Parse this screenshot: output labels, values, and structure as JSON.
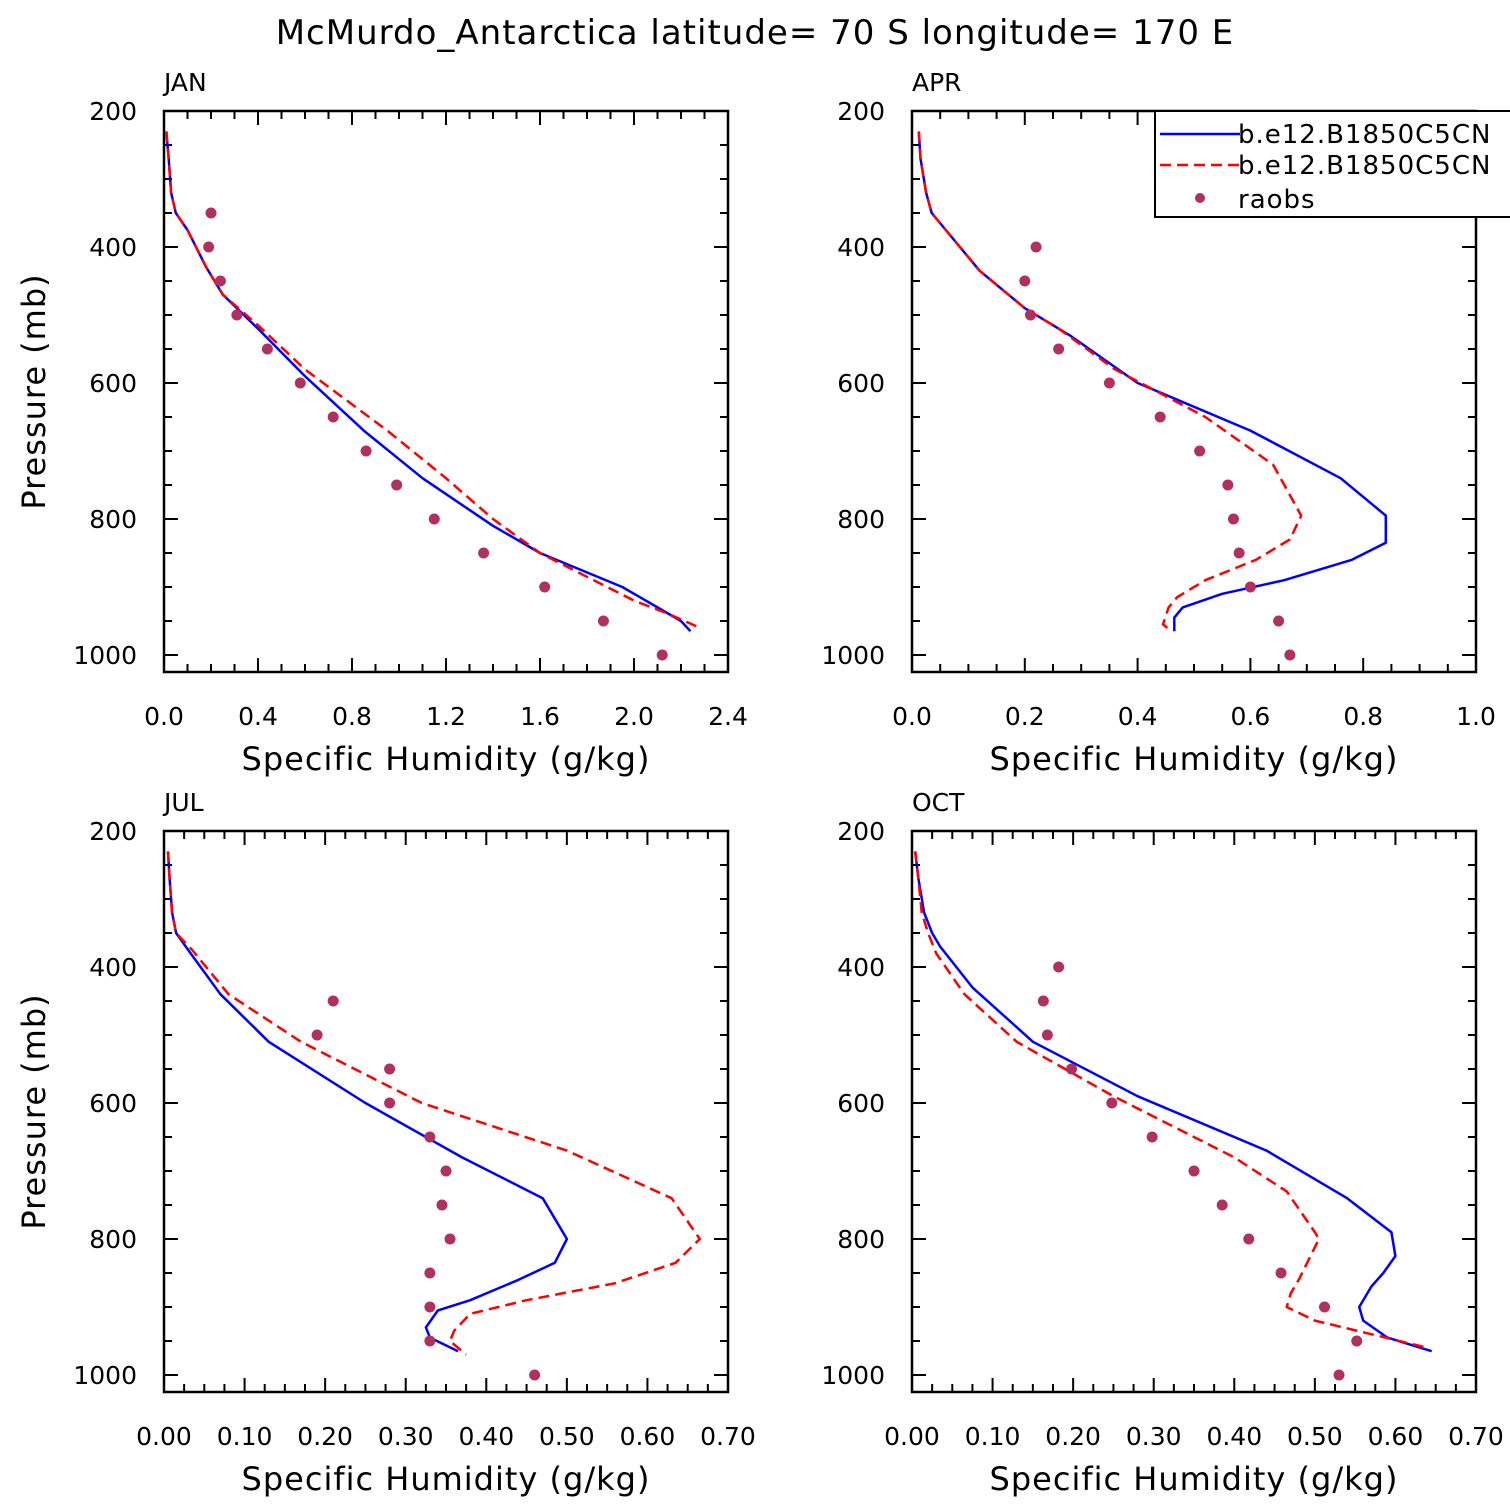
{
  "figure_title": "McMurdo_Antarctica  latitude= 70 S longitude= 170 E",
  "legend": {
    "entries": [
      {
        "label": "b.e12.B1850C5CN",
        "style": "solid",
        "color": "#0000ff"
      },
      {
        "label": "b.e12.B1850C5CN",
        "style": "dashed",
        "color": "#ff0000"
      },
      {
        "label": "raobs",
        "style": "dot",
        "color": "#b03060"
      }
    ],
    "placement": "top-right of APR panel"
  },
  "chart_data": [
    {
      "type": "line",
      "panel": "JAN",
      "xlabel": "Specific Humidity (g/kg)",
      "ylabel": "Pressure (mb)",
      "xlim": [
        0,
        2.4
      ],
      "ylim": [
        1025,
        200
      ],
      "xticks": [
        0,
        0.4,
        0.8,
        1.2,
        1.6,
        2.0,
        2.4
      ],
      "xtick_labels": [
        "0.0",
        "0.4",
        "0.8",
        "1.2",
        "1.6",
        "2.0",
        "2.4"
      ],
      "yticks": [
        200,
        400,
        600,
        800,
        1000
      ],
      "ytick_labels": [
        "200",
        "400",
        "600",
        "800",
        "1000"
      ],
      "series": [
        {
          "name": "b.e12.B1850C5CN",
          "style": "solid",
          "color": "#0000ff",
          "x": [
            0.01,
            0.02,
            0.03,
            0.05,
            0.1,
            0.18,
            0.25,
            0.4,
            0.6,
            0.85,
            1.1,
            1.4,
            1.6,
            1.95,
            2.2,
            2.24
          ],
          "y": [
            230,
            270,
            320,
            350,
            375,
            430,
            470,
            520,
            590,
            670,
            740,
            810,
            850,
            900,
            950,
            965
          ]
        },
        {
          "name": "b.e12.B1850C5CN",
          "style": "dashed",
          "color": "#ff0000",
          "x": [
            0.01,
            0.02,
            0.03,
            0.05,
            0.1,
            0.18,
            0.25,
            0.4,
            0.6,
            0.95,
            1.2,
            1.4,
            1.6,
            2.0,
            2.15,
            2.28
          ],
          "y": [
            230,
            270,
            320,
            350,
            375,
            430,
            470,
            515,
            580,
            670,
            740,
            800,
            850,
            920,
            940,
            960
          ]
        },
        {
          "name": "raobs",
          "style": "dot",
          "color": "#b03060",
          "x": [
            0.2,
            0.19,
            0.24,
            0.31,
            0.44,
            0.58,
            0.72,
            0.86,
            0.99,
            1.15,
            1.36,
            1.62,
            1.87,
            2.12
          ],
          "y": [
            350,
            400,
            450,
            500,
            550,
            600,
            650,
            700,
            750,
            800,
            850,
            900,
            950,
            1000
          ]
        }
      ]
    },
    {
      "type": "line",
      "panel": "APR",
      "xlabel": "Specific Humidity (g/kg)",
      "ylabel": "",
      "xlim": [
        0,
        1.0
      ],
      "ylim": [
        1025,
        200
      ],
      "xticks": [
        0,
        0.2,
        0.4,
        0.6,
        0.8,
        1.0
      ],
      "xtick_labels": [
        "0.0",
        "0.2",
        "0.4",
        "0.6",
        "0.8",
        "1.0"
      ],
      "yticks": [
        200,
        400,
        600,
        800,
        1000
      ],
      "ytick_labels": [
        "200",
        "400",
        "600",
        "800",
        "1000"
      ],
      "series": [
        {
          "name": "b.e12.B1850C5CN",
          "style": "solid",
          "color": "#0000ff",
          "x": [
            0.012,
            0.015,
            0.025,
            0.035,
            0.06,
            0.12,
            0.2,
            0.28,
            0.4,
            0.6,
            0.76,
            0.84,
            0.84,
            0.78,
            0.66,
            0.55,
            0.48,
            0.465,
            0.465
          ],
          "y": [
            230,
            270,
            320,
            350,
            375,
            435,
            490,
            530,
            600,
            670,
            740,
            795,
            835,
            860,
            890,
            910,
            930,
            945,
            965
          ]
        },
        {
          "name": "b.e12.B1850C5CN",
          "style": "dashed",
          "color": "#ff0000",
          "x": [
            0.012,
            0.015,
            0.025,
            0.035,
            0.06,
            0.12,
            0.2,
            0.26,
            0.36,
            0.52,
            0.64,
            0.69,
            0.67,
            0.61,
            0.52,
            0.47,
            0.455,
            0.445,
            0.46
          ],
          "y": [
            230,
            270,
            320,
            350,
            375,
            435,
            490,
            520,
            580,
            650,
            720,
            795,
            830,
            860,
            890,
            915,
            930,
            955,
            965
          ]
        },
        {
          "name": "raobs",
          "style": "dot",
          "color": "#b03060",
          "x": [
            0.22,
            0.2,
            0.21,
            0.26,
            0.35,
            0.44,
            0.51,
            0.56,
            0.57,
            0.58,
            0.6,
            0.65,
            0.67
          ],
          "y": [
            400,
            450,
            500,
            550,
            600,
            650,
            700,
            750,
            800,
            850,
            900,
            950,
            1000
          ]
        }
      ]
    },
    {
      "type": "line",
      "panel": "JUL",
      "xlabel": "Specific Humidity (g/kg)",
      "ylabel": "Pressure (mb)",
      "xlim": [
        0,
        0.7
      ],
      "ylim": [
        1025,
        200
      ],
      "xticks": [
        0,
        0.1,
        0.2,
        0.3,
        0.4,
        0.5,
        0.6,
        0.7
      ],
      "xtick_labels": [
        "0.00",
        "0.10",
        "0.20",
        "0.30",
        "0.40",
        "0.50",
        "0.60",
        "0.70"
      ],
      "yticks": [
        200,
        400,
        600,
        800,
        1000
      ],
      "ytick_labels": [
        "200",
        "400",
        "600",
        "800",
        "1000"
      ],
      "series": [
        {
          "name": "b.e12.B1850C5CN",
          "style": "solid",
          "color": "#0000ff",
          "x": [
            0.005,
            0.007,
            0.01,
            0.015,
            0.03,
            0.07,
            0.13,
            0.25,
            0.37,
            0.47,
            0.5,
            0.485,
            0.44,
            0.38,
            0.34,
            0.325,
            0.33,
            0.365
          ],
          "y": [
            230,
            270,
            320,
            350,
            375,
            440,
            510,
            600,
            680,
            740,
            800,
            835,
            860,
            890,
            905,
            930,
            945,
            965
          ]
        },
        {
          "name": "b.e12.B1850C5CN",
          "style": "dashed",
          "color": "#ff0000",
          "x": [
            0.005,
            0.007,
            0.01,
            0.015,
            0.035,
            0.08,
            0.17,
            0.32,
            0.5,
            0.63,
            0.665,
            0.635,
            0.56,
            0.45,
            0.38,
            0.36,
            0.355,
            0.375
          ],
          "y": [
            230,
            270,
            320,
            350,
            375,
            440,
            510,
            600,
            670,
            740,
            800,
            835,
            865,
            890,
            910,
            935,
            950,
            970
          ]
        },
        {
          "name": "raobs",
          "style": "dot",
          "color": "#b03060",
          "x": [
            0.21,
            0.19,
            0.28,
            0.28,
            0.33,
            0.35,
            0.345,
            0.355,
            0.33,
            0.33,
            0.33,
            0.46
          ],
          "y": [
            450,
            500,
            550,
            600,
            650,
            700,
            750,
            800,
            850,
            900,
            950,
            1000
          ]
        }
      ]
    },
    {
      "type": "line",
      "panel": "OCT",
      "xlabel": "Specific Humidity (g/kg)",
      "ylabel": "",
      "xlim": [
        0,
        0.7
      ],
      "ylim": [
        1025,
        200
      ],
      "xticks": [
        0,
        0.1,
        0.2,
        0.3,
        0.4,
        0.5,
        0.6,
        0.7
      ],
      "xtick_labels": [
        "0.00",
        "0.10",
        "0.20",
        "0.30",
        "0.40",
        "0.50",
        "0.60",
        "0.70"
      ],
      "yticks": [
        200,
        400,
        600,
        800,
        1000
      ],
      "ytick_labels": [
        "200",
        "400",
        "600",
        "800",
        "1000"
      ],
      "series": [
        {
          "name": "b.e12.B1850C5CN",
          "style": "solid",
          "color": "#0000ff",
          "x": [
            0.004,
            0.008,
            0.015,
            0.025,
            0.035,
            0.075,
            0.15,
            0.28,
            0.44,
            0.54,
            0.595,
            0.6,
            0.585,
            0.57,
            0.555,
            0.56,
            0.59,
            0.645
          ],
          "y": [
            230,
            270,
            320,
            350,
            370,
            430,
            510,
            590,
            670,
            740,
            790,
            825,
            850,
            870,
            900,
            920,
            945,
            965
          ]
        },
        {
          "name": "b.e12.B1850C5CN",
          "style": "dashed",
          "color": "#ff0000",
          "x": [
            0.004,
            0.008,
            0.012,
            0.02,
            0.03,
            0.065,
            0.13,
            0.25,
            0.4,
            0.465,
            0.5,
            0.505,
            0.48,
            0.47,
            0.465,
            0.5,
            0.57,
            0.64
          ],
          "y": [
            230,
            270,
            320,
            350,
            380,
            440,
            510,
            590,
            680,
            730,
            790,
            800,
            860,
            880,
            900,
            920,
            940,
            960
          ]
        },
        {
          "name": "raobs",
          "style": "dot",
          "color": "#b03060",
          "x": [
            0.182,
            0.163,
            0.168,
            0.198,
            0.248,
            0.298,
            0.35,
            0.385,
            0.418,
            0.458,
            0.512,
            0.552,
            0.53
          ],
          "y": [
            400,
            450,
            500,
            550,
            600,
            650,
            700,
            750,
            800,
            850,
            900,
            950,
            1000
          ]
        }
      ]
    }
  ]
}
